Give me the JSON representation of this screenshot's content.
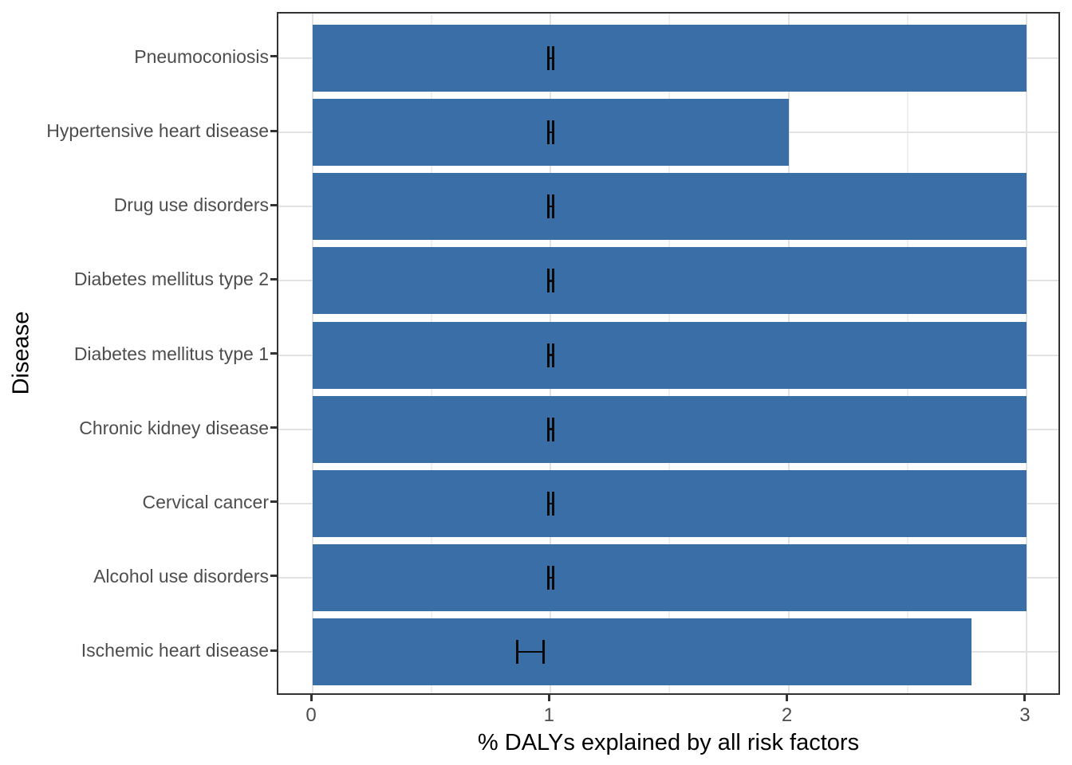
{
  "figure": {
    "background": "#ffffff",
    "panel_border_color": "#333333",
    "grid_major_color": "#e2e2e2",
    "grid_minor_color": "#efefef",
    "tick_mark_color": "#333333",
    "axis_text_color": "#4d4d4d",
    "axis_title_color": "#000000"
  },
  "chart_data": {
    "type": "bar",
    "orientation": "horizontal",
    "title": "",
    "xlabel": "% DALYs explained by all risk factors",
    "ylabel": "Disease",
    "xlim": [
      0,
      3.15
    ],
    "x_ticks": [
      {
        "label": "0",
        "value": 0
      },
      {
        "label": "1",
        "value": 1
      },
      {
        "label": "2",
        "value": 2
      },
      {
        "label": "3",
        "value": 3
      }
    ],
    "x_minor_gridlines": [
      0.5,
      1.5,
      2.5
    ],
    "grid": "vertical major+minor, horizontal major at category centers",
    "legend_position": "none",
    "bar_color": "#3a6ea6",
    "errorbar_color": "#0a0a0a",
    "rows_top_to_bottom": [
      {
        "label": "Pneumoconiosis",
        "value": 3.0,
        "error_lo": 0.99,
        "error_hi": 1.01
      },
      {
        "label": "Hypertensive heart disease",
        "value": 2.0,
        "error_lo": 0.99,
        "error_hi": 1.01
      },
      {
        "label": "Drug use disorders",
        "value": 3.0,
        "error_lo": 0.99,
        "error_hi": 1.01
      },
      {
        "label": "Diabetes mellitus type 2",
        "value": 3.0,
        "error_lo": 0.99,
        "error_hi": 1.01
      },
      {
        "label": "Diabetes mellitus type 1",
        "value": 3.0,
        "error_lo": 0.99,
        "error_hi": 1.01
      },
      {
        "label": "Chronic kidney disease",
        "value": 3.0,
        "error_lo": 0.99,
        "error_hi": 1.01
      },
      {
        "label": "Cervical cancer",
        "value": 3.0,
        "error_lo": 0.99,
        "error_hi": 1.01
      },
      {
        "label": "Alcohol use disorders",
        "value": 3.0,
        "error_lo": 0.99,
        "error_hi": 1.01
      },
      {
        "label": "Ischemic heart disease",
        "value": 2.77,
        "error_lo": 0.86,
        "error_hi": 0.97
      }
    ]
  }
}
